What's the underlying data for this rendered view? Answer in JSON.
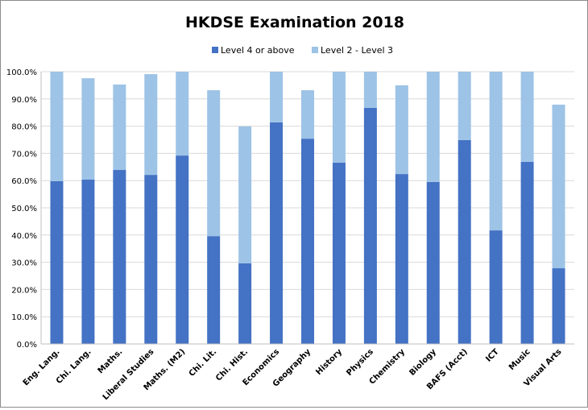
{
  "chart_data": {
    "type": "bar",
    "stacked": true,
    "title": "HKDSE Examination 2018",
    "xlabel": "",
    "ylabel": "",
    "ylim": [
      0,
      100
    ],
    "yticks": [
      "0.0%",
      "10.0%",
      "20.0%",
      "30.0%",
      "40.0%",
      "50.0%",
      "60.0%",
      "70.0%",
      "80.0%",
      "90.0%",
      "100.0%"
    ],
    "grid": "horizontal",
    "legend": "top",
    "categories": [
      "Eng. Lang.",
      "Chi. Lang.",
      "Maths.",
      "Liberal Studies",
      "Maths. (M2)",
      "Chi. Lit.",
      "Chi. Hist.",
      "Economics",
      "Geography",
      "History",
      "Physics",
      "Chemistry",
      "Biology",
      "BAFS (Acct)",
      "ICT",
      "Music",
      "Visual Arts"
    ],
    "series": [
      {
        "name": "Level 4 or above",
        "color": "#4472c4",
        "values": [
          59.8,
          60.4,
          63.9,
          62.1,
          69.2,
          39.6,
          29.6,
          81.4,
          75.4,
          66.6,
          86.7,
          62.4,
          59.5,
          74.9,
          41.7,
          66.9,
          27.8
        ]
      },
      {
        "name": "Level 2 - Level 3",
        "color": "#9dc3e6",
        "values": [
          40.2,
          37.2,
          31.4,
          37.0,
          30.8,
          53.6,
          50.3,
          18.6,
          17.8,
          33.4,
          13.3,
          32.6,
          40.5,
          25.1,
          58.3,
          33.1,
          60.1
        ]
      }
    ]
  }
}
